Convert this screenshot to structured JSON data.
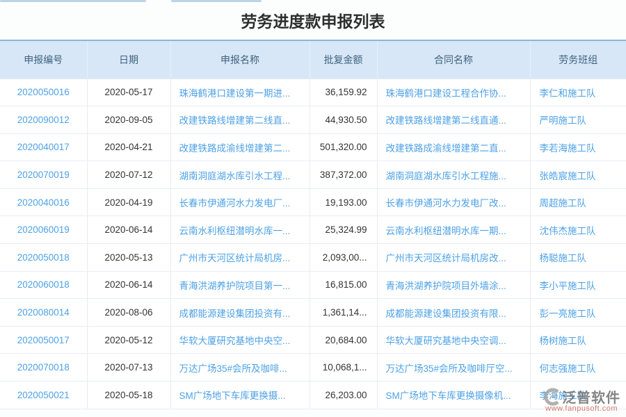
{
  "page": {
    "title": "劳务进度款申报列表"
  },
  "colors": {
    "header_bg": "#d7e7f8",
    "header_text": "#3f627d",
    "header_top_border": "#8ab4da",
    "link_blue": "#4da1e6",
    "body_text": "#333333",
    "row_border": "#e7edf4",
    "top_accent": "#bcd3ea",
    "watermark_url_red": "#c65c48"
  },
  "table": {
    "columns": [
      {
        "key": "id",
        "label": "申报编号"
      },
      {
        "key": "date",
        "label": "日期"
      },
      {
        "key": "name",
        "label": "申报名称"
      },
      {
        "key": "amount",
        "label": "批复金额"
      },
      {
        "key": "contract",
        "label": "合同名称"
      },
      {
        "key": "team",
        "label": "劳务班组"
      }
    ],
    "rows": [
      {
        "id": "2020050016",
        "date": "2020-05-17",
        "name": "珠海鹤港口建设第一期进...",
        "amount": "36,159.92",
        "contract": "珠海鹤港口建设工程合作协...",
        "team": "李仁和施工队"
      },
      {
        "id": "2020090012",
        "date": "2020-09-05",
        "name": "改建铁路线增建第二线直...",
        "amount": "44,930.50",
        "contract": "改建铁路线增建第二线直通...",
        "team": "严明施工队"
      },
      {
        "id": "2020040017",
        "date": "2020-04-21",
        "name": "改建铁路成渝线增建第二...",
        "amount": "501,320.00",
        "contract": "改建铁路成渝线增建第二直...",
        "team": "李若海施工队"
      },
      {
        "id": "2020070019",
        "date": "2020-07-12",
        "name": "湖南洞庭湖水库引水工程...",
        "amount": "387,372.00",
        "contract": "湖南洞庭湖水库引水工程施...",
        "team": "张皓宸施工队"
      },
      {
        "id": "2020040016",
        "date": "2020-04-19",
        "name": "长春市伊通河水力发电厂...",
        "amount": "19,193.00",
        "contract": "长春市伊通河水力发电厂改...",
        "team": "周超施工队"
      },
      {
        "id": "2020060019",
        "date": "2020-06-14",
        "name": "云南水利枢纽潜明水库一...",
        "amount": "25,324.99",
        "contract": "云南水利枢纽潜明水库一期...",
        "team": "沈伟杰施工队"
      },
      {
        "id": "2020050018",
        "date": "2020-05-13",
        "name": "广州市天河区统计局机房...",
        "amount": "2,093,00...",
        "contract": "广州市天河区统计局机房改...",
        "team": "杨聪施工队"
      },
      {
        "id": "2020060018",
        "date": "2020-06-14",
        "name": "青海洪湖养护院项目第一...",
        "amount": "16,815.00",
        "contract": "青海洪湖养护院项目外墙涂...",
        "team": "李小平施工队"
      },
      {
        "id": "2020080014",
        "date": "2020-08-06",
        "name": "成都能源建设集团投资有...",
        "amount": "1,361,14...",
        "contract": "成都能源建设集团投资有限...",
        "team": "彭一亮施工队"
      },
      {
        "id": "2020050017",
        "date": "2020-05-12",
        "name": "华软大厦研究基地中央空...",
        "amount": "20,684.00",
        "contract": "华软大厦研究基地中央空调...",
        "team": "杨树施工队"
      },
      {
        "id": "2020070018",
        "date": "2020-07-13",
        "name": "万达广场35#会所及咖啡...",
        "amount": "10,068,1...",
        "contract": "万达广场35#会所及咖啡厅空...",
        "team": "何志强施工队"
      },
      {
        "id": "2020050021",
        "date": "2020-05-18",
        "name": "SM广场地下车库更换摄...",
        "amount": "26,203.00",
        "contract": "SM广场地下车库更换摄像机...",
        "team": "李海施工队"
      }
    ]
  },
  "watermark": {
    "name": "泛普软件",
    "url": "www.fanpusoft.com",
    "logo": "fanpu-c-swoosh"
  }
}
